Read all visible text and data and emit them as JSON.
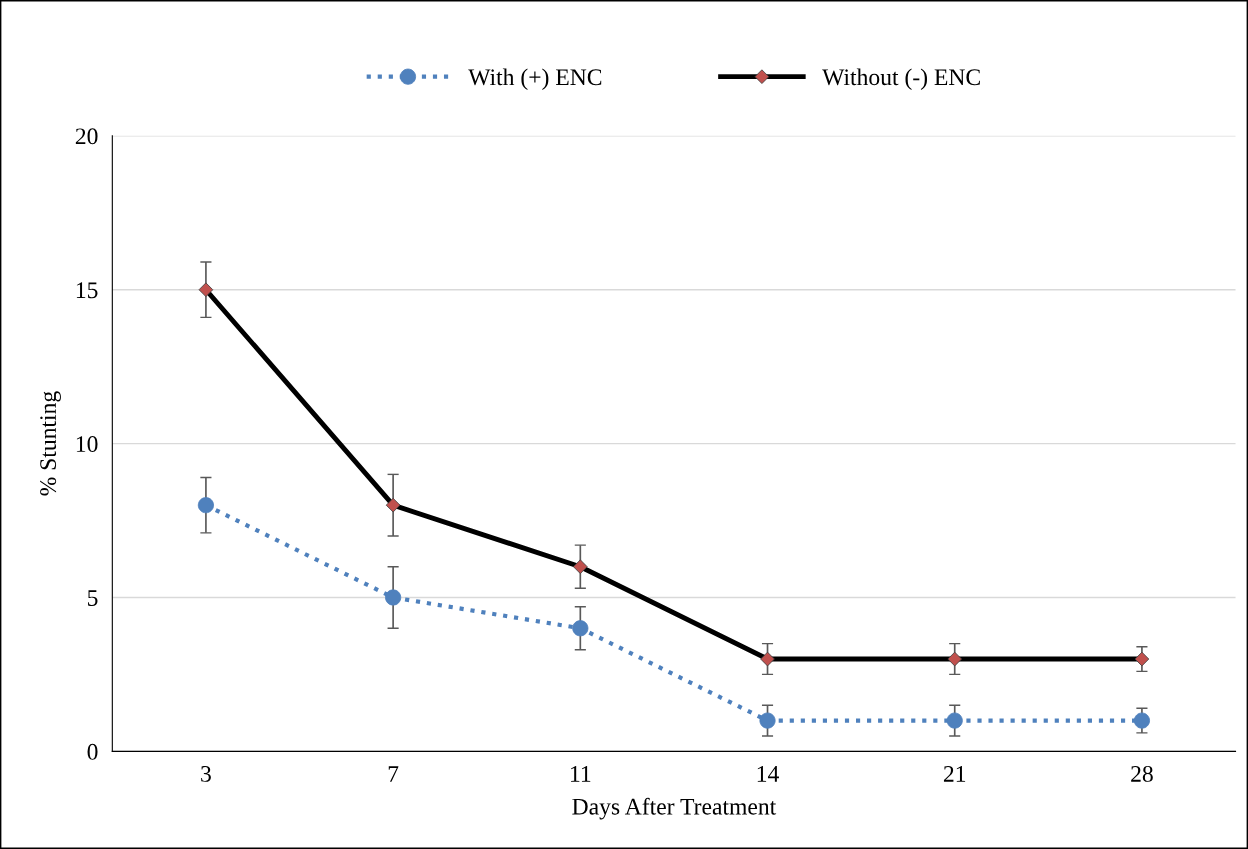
{
  "chart_data": {
    "type": "line",
    "xlabel": "Days After Treatment",
    "ylabel": "% Stunting",
    "categories": [
      "3",
      "7",
      "11",
      "14",
      "21",
      "28"
    ],
    "ylim": [
      0,
      20
    ],
    "yticks": [
      0,
      5,
      10,
      15,
      20
    ],
    "grid": "y",
    "legend": "top",
    "series": [
      {
        "name": "With (+) ENC",
        "color": "#4f81bd",
        "marker": "circle",
        "line_style": "dotted",
        "values": [
          8,
          5,
          4,
          1,
          1,
          1
        ],
        "errors": [
          0.9,
          1.0,
          0.7,
          0.5,
          0.5,
          0.4
        ]
      },
      {
        "name": "Without (-) ENC",
        "color": "#000000",
        "colors": [
          "#c0504d",
          "#c0504d",
          "#c0504d",
          "#c0504d",
          "#c0504d",
          "#c0504d"
        ],
        "marker": "diamond",
        "line_style": "solid",
        "values": [
          15,
          8,
          6,
          3,
          3,
          3
        ],
        "errors": [
          0.9,
          1.0,
          0.7,
          0.5,
          0.5,
          0.4
        ]
      }
    ]
  }
}
